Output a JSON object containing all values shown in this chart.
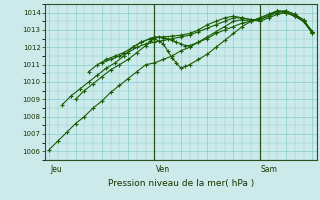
{
  "title": "Pression niveau de la mer( hPa )",
  "bg_color": "#cceaea",
  "grid_color": "#88cccc",
  "line_color": "#1a5c00",
  "ylim": [
    1005.5,
    1014.5
  ],
  "yticks": [
    1006,
    1007,
    1008,
    1009,
    1010,
    1011,
    1012,
    1013,
    1014
  ],
  "day_labels": [
    "Jeu",
    "Ven",
    "Sam"
  ],
  "day_positions": [
    0,
    48,
    96
  ],
  "xlim": [
    -2,
    122
  ],
  "lines": [
    [
      0,
      1006.1,
      4,
      1006.6,
      8,
      1007.1,
      12,
      1007.6,
      16,
      1008.0,
      20,
      1008.5,
      24,
      1008.9,
      28,
      1009.4,
      32,
      1009.8,
      36,
      1010.2,
      40,
      1010.6,
      44,
      1011.0,
      48,
      1011.1,
      52,
      1011.3,
      56,
      1011.5,
      60,
      1011.8,
      64,
      1012.0,
      68,
      1012.3,
      72,
      1012.5,
      76,
      1012.8,
      80,
      1013.0,
      84,
      1013.2,
      88,
      1013.4,
      92,
      1013.5,
      96,
      1013.7,
      100,
      1013.9,
      104,
      1014.1,
      108,
      1014.0,
      112,
      1013.8,
      116,
      1013.5,
      120,
      1012.8
    ],
    [
      6,
      1008.7,
      10,
      1009.2,
      14,
      1009.6,
      18,
      1010.0,
      22,
      1010.4,
      26,
      1010.8,
      30,
      1011.1,
      34,
      1011.5,
      38,
      1012.0,
      42,
      1012.3,
      46,
      1012.5,
      48,
      1012.5,
      50,
      1012.35,
      52,
      1012.2,
      54,
      1011.8,
      56,
      1011.4,
      58,
      1011.1,
      60,
      1010.8,
      62,
      1010.9,
      64,
      1011.0,
      68,
      1011.3,
      72,
      1011.6,
      76,
      1012.0,
      80,
      1012.4,
      84,
      1012.8,
      88,
      1013.2,
      92,
      1013.5,
      96,
      1013.7,
      100,
      1013.9,
      104,
      1014.1,
      108,
      1014.0,
      112,
      1013.8,
      116,
      1013.5,
      120,
      1012.8
    ],
    [
      12,
      1009.0,
      16,
      1009.5,
      20,
      1009.9,
      24,
      1010.3,
      28,
      1010.7,
      32,
      1011.0,
      36,
      1011.3,
      40,
      1011.7,
      44,
      1012.1,
      46,
      1012.35,
      48,
      1012.5,
      50,
      1012.6,
      52,
      1012.55,
      54,
      1012.5,
      56,
      1012.4,
      58,
      1012.3,
      60,
      1012.2,
      62,
      1012.1,
      64,
      1012.1,
      68,
      1012.3,
      72,
      1012.6,
      76,
      1012.9,
      80,
      1013.2,
      84,
      1013.5,
      88,
      1013.6,
      92,
      1013.5,
      96,
      1013.6,
      100,
      1013.8,
      104,
      1014.1,
      108,
      1014.1,
      112,
      1013.9,
      116,
      1013.5,
      120,
      1012.9
    ],
    [
      18,
      1010.6,
      22,
      1011.0,
      26,
      1011.3,
      30,
      1011.5,
      34,
      1011.7,
      38,
      1012.0,
      42,
      1012.3,
      46,
      1012.5,
      48,
      1012.6,
      52,
      1012.6,
      56,
      1012.65,
      60,
      1012.7,
      64,
      1012.8,
      68,
      1013.0,
      72,
      1013.3,
      76,
      1013.5,
      80,
      1013.7,
      84,
      1013.8,
      88,
      1013.7,
      92,
      1013.6,
      96,
      1013.6,
      100,
      1013.8,
      104,
      1014.0,
      108,
      1014.1,
      112,
      1013.9,
      116,
      1013.6,
      120,
      1012.9
    ],
    [
      24,
      1011.1,
      28,
      1011.3,
      32,
      1011.5,
      36,
      1011.7,
      40,
      1012.0,
      44,
      1012.2,
      48,
      1012.3,
      52,
      1012.4,
      56,
      1012.5,
      60,
      1012.6,
      64,
      1012.7,
      68,
      1012.9,
      72,
      1013.1,
      76,
      1013.3,
      80,
      1013.5,
      84,
      1013.7,
      88,
      1013.7,
      92,
      1013.6,
      96,
      1013.5,
      100,
      1013.7,
      104,
      1013.9,
      108,
      1014.0,
      112,
      1013.8,
      116,
      1013.5,
      120,
      1012.9
    ]
  ]
}
